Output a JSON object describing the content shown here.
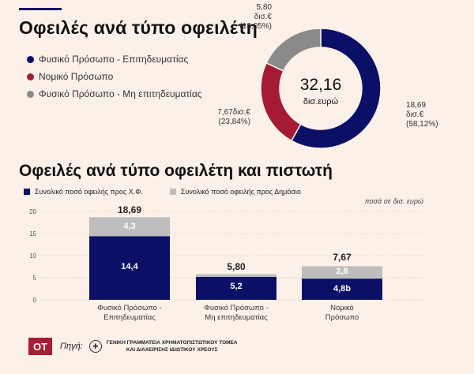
{
  "donut": {
    "title": "Οφειλές ανά τύπο οφειλέτη",
    "center_value": "32,16",
    "center_unit": "δισ.ευρώ",
    "legend": [
      {
        "label": "Φυσικό Πρόσωπο - Επιτηδευματίας",
        "color": "#0c0f66"
      },
      {
        "label": "Νομικό Πρόσωπο",
        "color": "#a41b33"
      },
      {
        "label": "Φυσικό Πρόσωπο - Μη επιτηδευματίας",
        "color": "#8a8a8a"
      }
    ],
    "slice_labels": [
      {
        "line1": "18,69",
        "line2": "δισ.€",
        "line3": "(58,12%)"
      },
      {
        "line1": "7,67δισ.€",
        "line2": "(23,84%)"
      },
      {
        "line1": "5,80",
        "line2": "δισ.€",
        "line3": "(18,05%)"
      }
    ]
  },
  "bars": {
    "title": "Οφειλές ανά τύπο οφειλέτη και πιστωτή",
    "legend": [
      {
        "label": "Συνολικό ποσό οφειλής προς Χ.Φ.",
        "color": "#0c0f66"
      },
      {
        "label": "Συνολικό ποσό οφειλής προς Δημόσιο",
        "color": "#bdbdbd"
      }
    ],
    "unit": "ποσά σε δισ. ευρώ",
    "yticks": [
      "0",
      "5",
      "10",
      "15",
      "20"
    ],
    "categories": [
      {
        "line1": "Φυσικό Πρόσωπο -",
        "line2": "Επιτηδευματίας"
      },
      {
        "line1": "Φυσικό Πρόσωπο -",
        "line2": "Μη επιτηδευματίας"
      },
      {
        "line1": "Νομικό",
        "line2": "Πρόσωπο"
      }
    ],
    "totals": [
      "18,69",
      "5,80",
      "7,67"
    ],
    "bottom_labels": [
      "14,4",
      "5,2",
      "4,8b"
    ],
    "top_labels": [
      "4,3",
      "",
      "2,8"
    ]
  },
  "chart_data": [
    {
      "type": "pie",
      "title": "Οφειλές ανά τύπο οφειλέτη",
      "categories": [
        "Φυσικό Πρόσωπο - Επιτηδευματίας",
        "Νομικό Πρόσωπο",
        "Φυσικό Πρόσωπο - Μη επιτηδευματίας"
      ],
      "values": [
        18.69,
        7.67,
        5.8
      ],
      "percentages": [
        58.12,
        23.84,
        18.05
      ],
      "total": 32.16,
      "colors": [
        "#0c0f66",
        "#a41b33",
        "#8a8a8a"
      ]
    },
    {
      "type": "bar",
      "stacked": true,
      "title": "Οφειλές ανά τύπο οφειλέτη και πιστωτή",
      "categories": [
        "Φυσικό Πρόσωπο - Επιτηδευματίας",
        "Φυσικό Πρόσωπο - Μη επιτηδευματίας",
        "Νομικό Πρόσωπο"
      ],
      "series": [
        {
          "name": "Συνολικό ποσό οφειλής προς Χ.Φ.",
          "values": [
            14.4,
            5.2,
            4.8
          ],
          "color": "#0c0f66"
        },
        {
          "name": "Συνολικό ποσό οφειλής προς Δημόσιο",
          "values": [
            4.3,
            0.6,
            2.8
          ],
          "color": "#bdbdbd"
        }
      ],
      "totals": [
        18.69,
        5.8,
        7.67
      ],
      "ylim": [
        0,
        20
      ],
      "yticks": [
        0,
        5,
        10,
        15,
        20
      ],
      "ylabel": "ποσά σε δισ. ευρώ",
      "grid": true
    }
  ],
  "footer": {
    "logo": "OT",
    "source_label": "Πηγή:",
    "source_line1": "ΓΕΝΙΚΗ ΓΡΑΜΜΑΤΕΙΑ ΧΡΗΜΑΤΟΠΙΣΤΩΤΙΚΟΥ ΤΟΜΕΑ",
    "source_line2": "ΚΑΙ ΔΙΑΧΕΙΡΙΣΗΣ ΙΔΙΩΤΙΚΟΥ ΧΡΕΟΥΣ",
    "seal_icon": "greek-emblem-icon"
  }
}
